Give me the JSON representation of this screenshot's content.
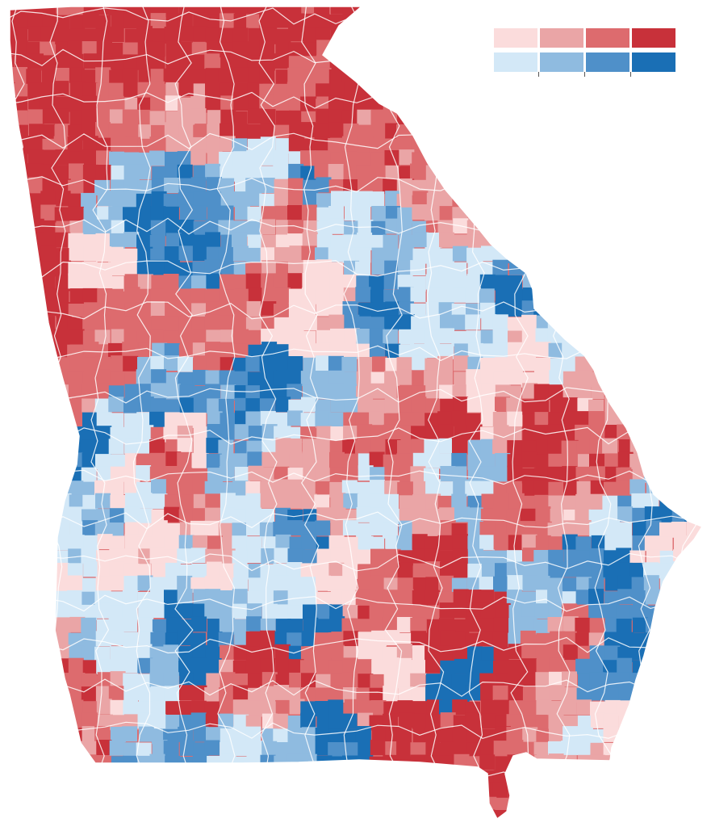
{
  "map": {
    "region": "Georgia",
    "boundary_color": "#ffffff",
    "scale": {
      "republican": [
        "#fbdcdc",
        "#eaa5a6",
        "#dd6b6e",
        "#c8313a"
      ],
      "democratic": [
        "#d3e8f7",
        "#8fbbe0",
        "#4f90c9",
        "#1a6fb5"
      ]
    }
  },
  "legend": {
    "rows": [
      {
        "party": "republican",
        "colors": [
          "#fbdcdc",
          "#eaa5a6",
          "#dd6b6e",
          "#c8313a"
        ]
      },
      {
        "party": "democratic",
        "colors": [
          "#d3e8f7",
          "#8fbbe0",
          "#4f90c9",
          "#1a6fb5"
        ]
      }
    ],
    "tick_count": 3
  }
}
